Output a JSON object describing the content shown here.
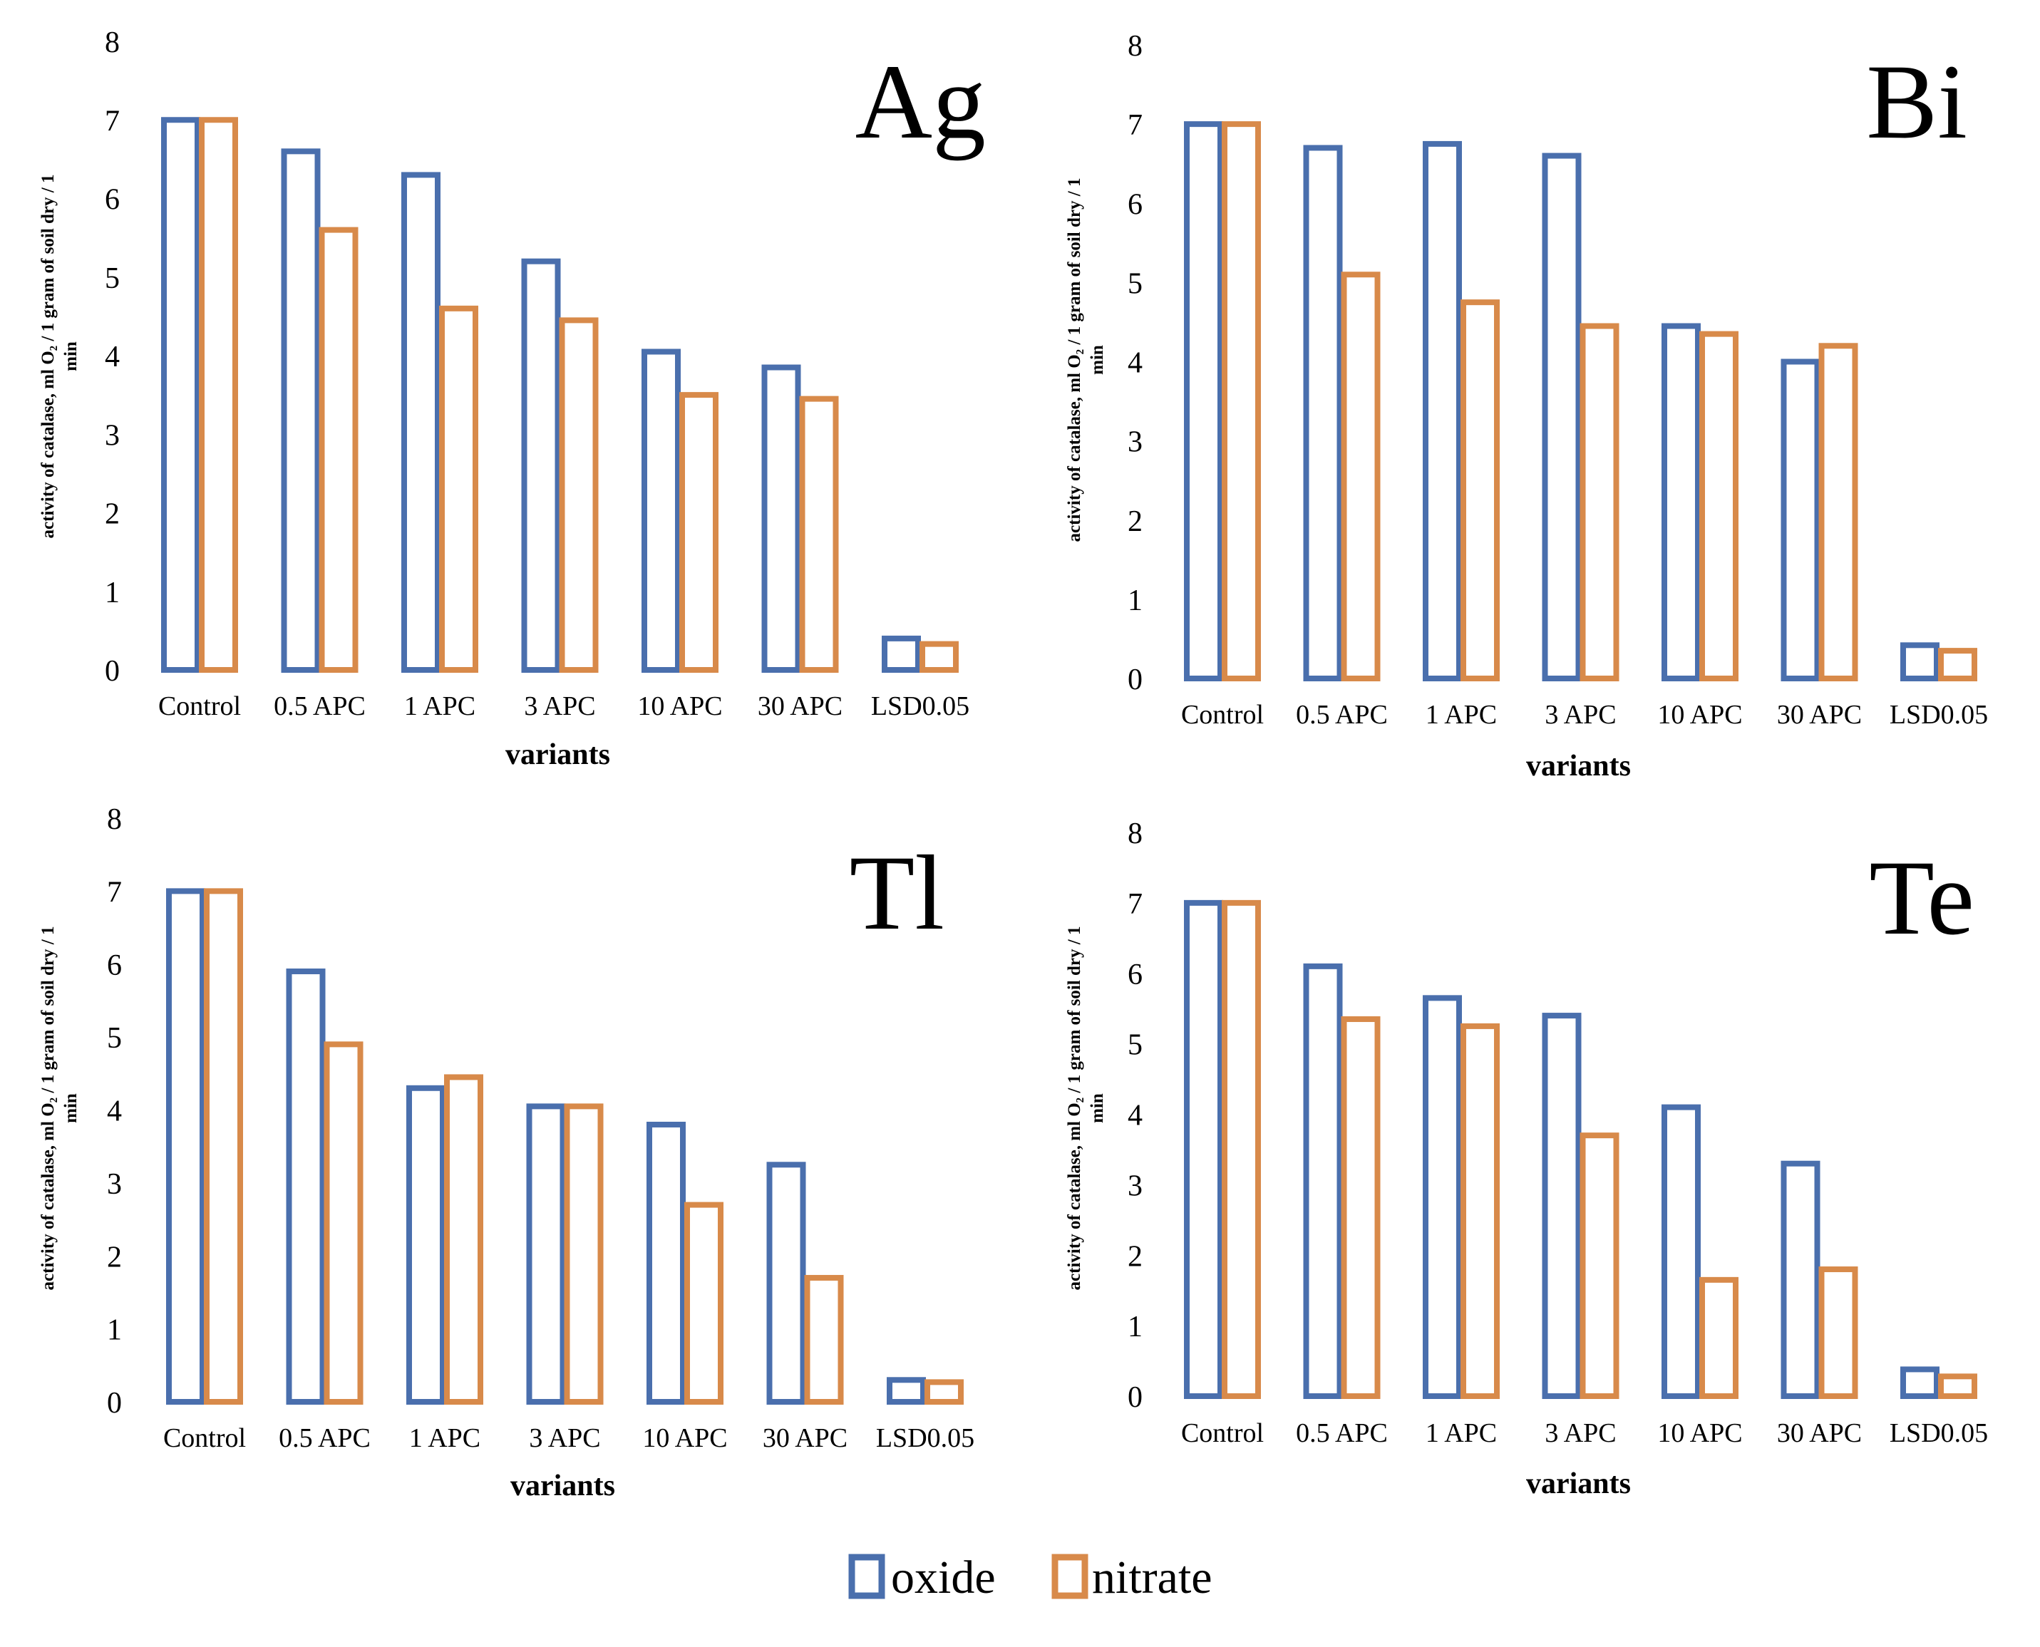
{
  "chart_data": [
    {
      "type": "bar",
      "title": "Ag",
      "xlabel": "variants",
      "ylabel_line1": "activity of catalase, ml O₂ / 1 gram of soil dry / 1",
      "ylabel_line2": "min",
      "ylim": [
        0,
        8
      ],
      "yticks": [
        "0",
        "1",
        "2",
        "3",
        "4",
        "5",
        "6",
        "7",
        "8"
      ],
      "categories": [
        "Control",
        "0.5  APC",
        "1 APC",
        "3 APC",
        "10 APC",
        "30 APC",
        "LSD0.05"
      ],
      "series": [
        {
          "name": "oxide",
          "values": [
            7.0,
            6.6,
            6.3,
            5.2,
            4.05,
            3.85,
            0.4
          ]
        },
        {
          "name": "nitrate",
          "values": [
            7.0,
            5.6,
            4.6,
            4.45,
            3.5,
            3.45,
            0.33
          ]
        }
      ]
    },
    {
      "type": "bar",
      "title": "Bi",
      "xlabel": "variants",
      "ylabel_line1": "activity of catalase, ml O₂ / 1 gram of soil dry / 1",
      "ylabel_line2": "min",
      "ylim": [
        0,
        8
      ],
      "yticks": [
        "0",
        "1",
        "2",
        "3",
        "4",
        "5",
        "6",
        "7",
        "8"
      ],
      "categories": [
        "Control",
        "0.5  APC",
        "1 APC",
        "3 APC",
        "10 APC",
        "30 APC",
        "LSD0.05"
      ],
      "series": [
        {
          "name": "oxide",
          "values": [
            7.0,
            6.7,
            6.75,
            6.6,
            4.45,
            4.0,
            0.42
          ]
        },
        {
          "name": "nitrate",
          "values": [
            7.0,
            5.1,
            4.75,
            4.45,
            4.35,
            4.2,
            0.35
          ]
        }
      ]
    },
    {
      "type": "bar",
      "title": "Tl",
      "xlabel": "variants",
      "ylabel_line1": "activity of catalase, ml O₂ / 1 gram of soil dry / 1",
      "ylabel_line2": "min",
      "ylim": [
        0,
        8
      ],
      "yticks": [
        "0",
        "1",
        "2",
        "3",
        "4",
        "5",
        "6",
        "7",
        "8"
      ],
      "categories": [
        "Control",
        "0.5  APC",
        "1 APC",
        "3 APC",
        "10 APC",
        "30 APC",
        "LSD0.05"
      ],
      "series": [
        {
          "name": "oxide",
          "values": [
            7.0,
            5.9,
            4.3,
            4.05,
            3.8,
            3.25,
            0.3
          ]
        },
        {
          "name": "nitrate",
          "values": [
            7.0,
            4.9,
            4.45,
            4.05,
            2.7,
            1.7,
            0.27
          ]
        }
      ]
    },
    {
      "type": "bar",
      "title": "Te",
      "xlabel": "variants",
      "ylabel_line1": "activity of catalase, ml O₂ / 1 gram of soil dry / 1",
      "ylabel_line2": "min",
      "ylim": [
        0,
        8
      ],
      "yticks": [
        "0",
        "1",
        "2",
        "3",
        "4",
        "5",
        "6",
        "7",
        "8"
      ],
      "categories": [
        "Control",
        "0.5  APC",
        "1 APC",
        "3 APC",
        "10 APC",
        "30 APC",
        "LSD0.05"
      ],
      "series": [
        {
          "name": "oxide",
          "values": [
            7.0,
            6.1,
            5.65,
            5.4,
            4.1,
            3.3,
            0.38
          ]
        },
        {
          "name": "nitrate",
          "values": [
            7.0,
            5.35,
            5.25,
            3.7,
            1.65,
            1.8,
            0.28
          ]
        }
      ]
    }
  ],
  "legend": {
    "oxide_label": "oxide",
    "nitrate_label": "nitrate"
  },
  "colors": {
    "oxide": "#4a6fad",
    "nitrate": "#d88a4a"
  }
}
